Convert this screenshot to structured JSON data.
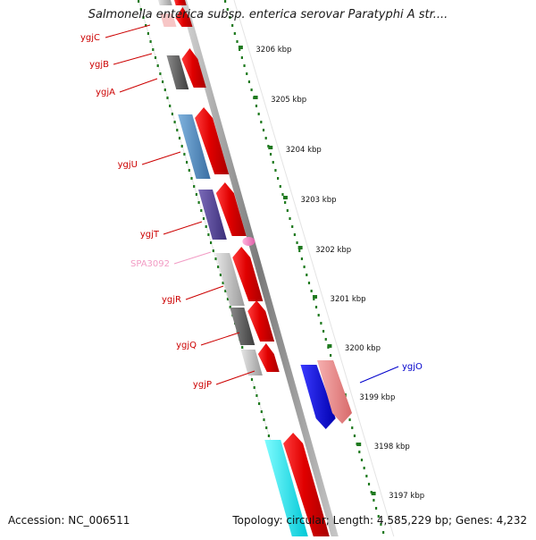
{
  "title": "Salmonella enterica subsp. enterica serovar Paratyphi A str....",
  "footer": {
    "accession": "Accession: NC_006511",
    "summary": "Topology: circular; Length: 4,585,229 bp; Genes: 4,232"
  },
  "scale_labels": [
    "3206 kbp",
    "3205 kbp",
    "3204 kbp",
    "3203 kbp",
    "3202 kbp",
    "3201 kbp",
    "3200 kbp",
    "3199 kbp",
    "3198 kbp",
    "3197 kbp"
  ],
  "genes": [
    {
      "name": "ygjC",
      "color": "#cc0000"
    },
    {
      "name": "ygjB",
      "color": "#cc0000"
    },
    {
      "name": "ygjA",
      "color": "#cc0000"
    },
    {
      "name": "ygjU",
      "color": "#cc0000"
    },
    {
      "name": "ygjT",
      "color": "#cc0000"
    },
    {
      "name": "SPA3092",
      "color": "#f29bc4"
    },
    {
      "name": "ygjR",
      "color": "#cc0000"
    },
    {
      "name": "ygjQ",
      "color": "#cc0000"
    },
    {
      "name": "ygjP",
      "color": "#cc0000"
    },
    {
      "name": "ygjO",
      "color": "#0000cc"
    }
  ],
  "colors": {
    "backbone": "#8a8a8a",
    "tick": "#1f7a1f",
    "cds_forward": "#ee0000",
    "cds_reverse": "#0000ee"
  }
}
